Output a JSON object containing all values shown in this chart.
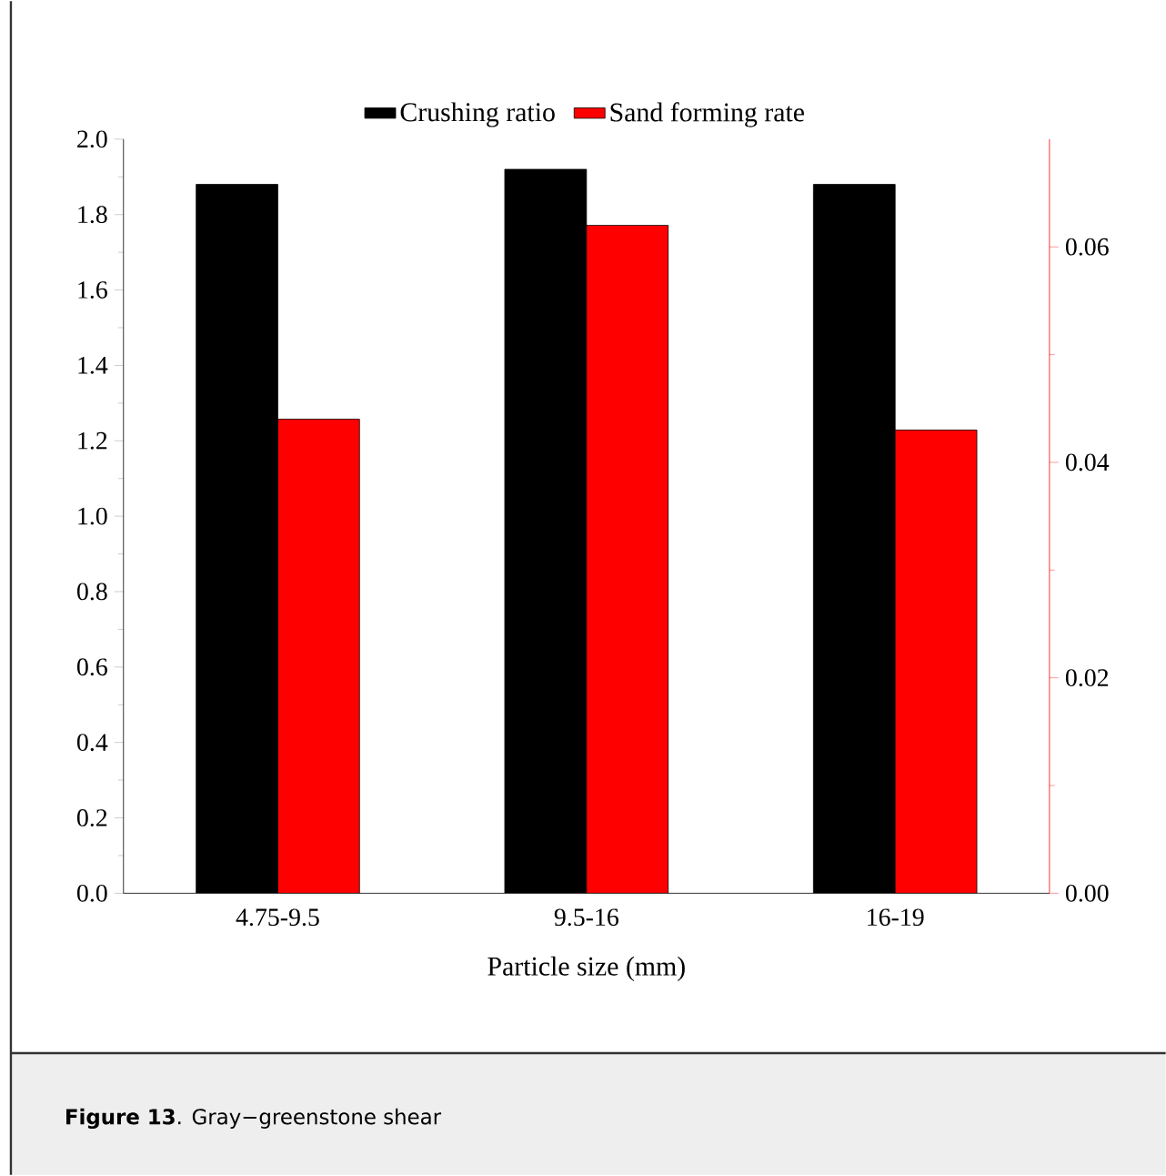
{
  "chart_data": {
    "type": "bar",
    "categories": [
      "4.75-9.5",
      "9.5-16",
      "16-19"
    ],
    "xlabel": "Particle size (mm)",
    "ylim": [
      0,
      2.0
    ],
    "yticks": [
      {
        "value": 0,
        "label": "0.0"
      },
      {
        "value": 0.2,
        "label": "0.2"
      },
      {
        "value": 0.4,
        "label": "0.4"
      },
      {
        "value": 0.6,
        "label": "0.6"
      },
      {
        "value": 0.8,
        "label": "0.8"
      },
      {
        "value": 1.0,
        "label": "1.0"
      },
      {
        "value": 1.2,
        "label": "1.2"
      },
      {
        "value": 1.4,
        "label": "1.4"
      },
      {
        "value": 1.6,
        "label": "1.6"
      },
      {
        "value": 1.8,
        "label": "1.8"
      },
      {
        "value": 2.0,
        "label": "2.0"
      }
    ],
    "y2lim": [
      0,
      0.07
    ],
    "y2ticks": [
      {
        "value": 0,
        "label": "0.00"
      },
      {
        "value": 0.02,
        "label": "0.02"
      },
      {
        "value": 0.04,
        "label": "0.04"
      },
      {
        "value": 0.06,
        "label": "0.06"
      }
    ],
    "series": [
      {
        "name": "Crushing ratio",
        "color": "#000000",
        "values": [
          1.88,
          1.92,
          1.88
        ]
      },
      {
        "name": "Sand forming rate",
        "color": "#ff0000",
        "axis": "y2",
        "values": [
          0.044,
          0.062,
          0.043
        ]
      }
    ],
    "legend": "top",
    "grid": false,
    "annotations": [
      "**Figure 13**. Gray−greenstone shear"
    ]
  }
}
